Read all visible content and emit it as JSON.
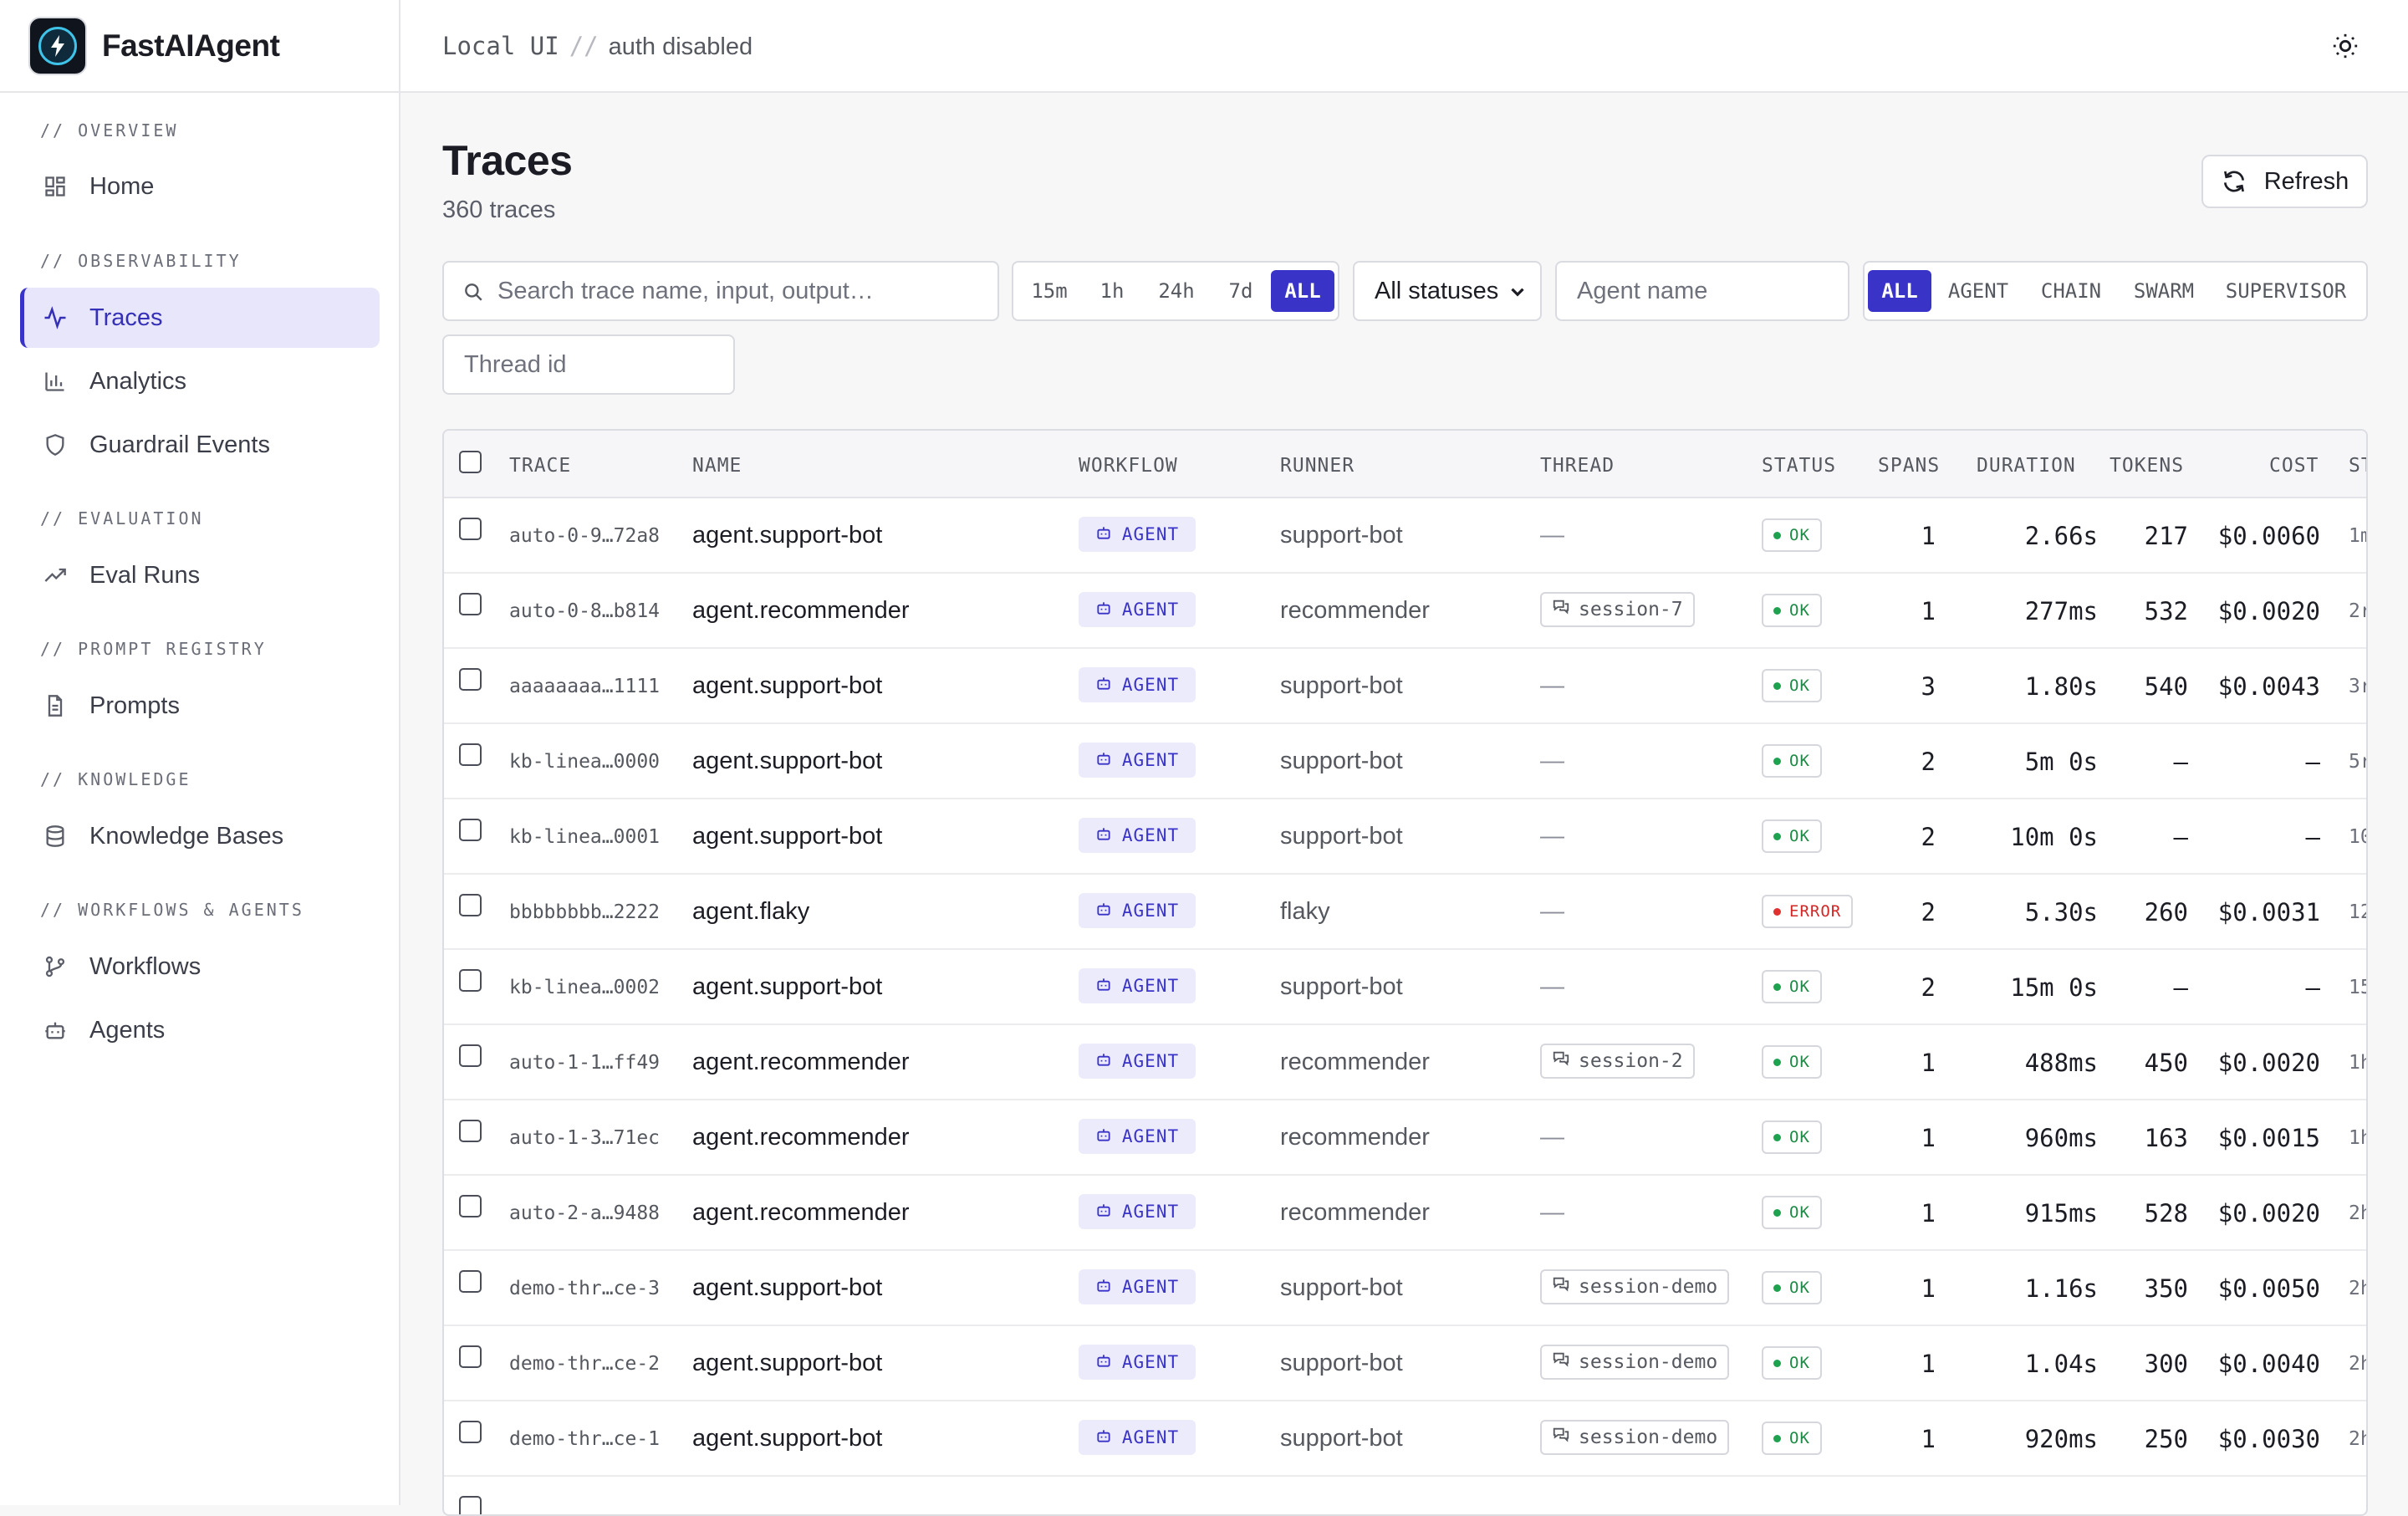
{
  "brand": {
    "name": "FastAIAgent"
  },
  "topbar": {
    "crumb_left": "Local UI",
    "crumb_sep": "//",
    "crumb_right": "auth disabled",
    "theme_icon": "sun-icon"
  },
  "sidebar": {
    "sections": [
      {
        "title": "// OVERVIEW",
        "items": [
          {
            "label": "Home",
            "icon": "grid-icon"
          }
        ]
      },
      {
        "title": "// OBSERVABILITY",
        "items": [
          {
            "label": "Traces",
            "icon": "activity-icon",
            "active": true
          },
          {
            "label": "Analytics",
            "icon": "bar-chart-icon"
          },
          {
            "label": "Guardrail Events",
            "icon": "shield-icon"
          }
        ]
      },
      {
        "title": "// EVALUATION",
        "items": [
          {
            "label": "Eval Runs",
            "icon": "trending-up-icon"
          }
        ]
      },
      {
        "title": "// PROMPT REGISTRY",
        "items": [
          {
            "label": "Prompts",
            "icon": "document-icon"
          }
        ]
      },
      {
        "title": "// KNOWLEDGE",
        "items": [
          {
            "label": "Knowledge Bases",
            "icon": "database-icon"
          }
        ]
      },
      {
        "title": "// WORKFLOWS & AGENTS",
        "items": [
          {
            "label": "Workflows",
            "icon": "git-branch-icon"
          },
          {
            "label": "Agents",
            "icon": "bot-icon"
          }
        ]
      }
    ]
  },
  "page": {
    "title": "Traces",
    "subtitle": "360 traces",
    "refresh_label": "Refresh"
  },
  "filters": {
    "search_placeholder": "Search trace name, input, output…",
    "time_ranges": [
      "15m",
      "1h",
      "24h",
      "7d",
      "ALL"
    ],
    "time_selected": "ALL",
    "status_select": "All statuses",
    "agent_placeholder": "Agent name",
    "kinds": [
      "ALL",
      "AGENT",
      "CHAIN",
      "SWARM",
      "SUPERVISOR"
    ],
    "kind_selected": "ALL",
    "thread_placeholder": "Thread id"
  },
  "table": {
    "columns": [
      "TRACE",
      "NAME",
      "WORKFLOW",
      "RUNNER",
      "THREAD",
      "STATUS",
      "SPANS",
      "DURATION",
      "TOKENS",
      "COST",
      "ST"
    ],
    "rows": [
      {
        "trace": "auto-0-9…72a8",
        "name": "agent.support-bot",
        "workflow": "AGENT",
        "runner": "support-bot",
        "thread": "—",
        "status": "OK",
        "spans": "1",
        "duration": "2.66s",
        "tokens": "217",
        "cost": "$0.0060",
        "started": "1m"
      },
      {
        "trace": "auto-0-8…b814",
        "name": "agent.recommender",
        "workflow": "AGENT",
        "runner": "recommender",
        "thread": "session-7",
        "status": "OK",
        "spans": "1",
        "duration": "277ms",
        "tokens": "532",
        "cost": "$0.0020",
        "started": "2r"
      },
      {
        "trace": "aaaaaaaa…1111",
        "name": "agent.support-bot",
        "workflow": "AGENT",
        "runner": "support-bot",
        "thread": "—",
        "status": "OK",
        "spans": "3",
        "duration": "1.80s",
        "tokens": "540",
        "cost": "$0.0043",
        "started": "3r"
      },
      {
        "trace": "kb-linea…0000",
        "name": "agent.support-bot",
        "workflow": "AGENT",
        "runner": "support-bot",
        "thread": "—",
        "status": "OK",
        "spans": "2",
        "duration": "5m 0s",
        "tokens": "—",
        "cost": "—",
        "started": "5r"
      },
      {
        "trace": "kb-linea…0001",
        "name": "agent.support-bot",
        "workflow": "AGENT",
        "runner": "support-bot",
        "thread": "—",
        "status": "OK",
        "spans": "2",
        "duration": "10m 0s",
        "tokens": "—",
        "cost": "—",
        "started": "10"
      },
      {
        "trace": "bbbbbbbb…2222",
        "name": "agent.flaky",
        "workflow": "AGENT",
        "runner": "flaky",
        "thread": "—",
        "status": "ERROR",
        "spans": "2",
        "duration": "5.30s",
        "tokens": "260",
        "cost": "$0.0031",
        "started": "12"
      },
      {
        "trace": "kb-linea…0002",
        "name": "agent.support-bot",
        "workflow": "AGENT",
        "runner": "support-bot",
        "thread": "—",
        "status": "OK",
        "spans": "2",
        "duration": "15m 0s",
        "tokens": "—",
        "cost": "—",
        "started": "15"
      },
      {
        "trace": "auto-1-1…ff49",
        "name": "agent.recommender",
        "workflow": "AGENT",
        "runner": "recommender",
        "thread": "session-2",
        "status": "OK",
        "spans": "1",
        "duration": "488ms",
        "tokens": "450",
        "cost": "$0.0020",
        "started": "1h"
      },
      {
        "trace": "auto-1-3…71ec",
        "name": "agent.recommender",
        "workflow": "AGENT",
        "runner": "recommender",
        "thread": "—",
        "status": "OK",
        "spans": "1",
        "duration": "960ms",
        "tokens": "163",
        "cost": "$0.0015",
        "started": "1h"
      },
      {
        "trace": "auto-2-a…9488",
        "name": "agent.recommender",
        "workflow": "AGENT",
        "runner": "recommender",
        "thread": "—",
        "status": "OK",
        "spans": "1",
        "duration": "915ms",
        "tokens": "528",
        "cost": "$0.0020",
        "started": "2h"
      },
      {
        "trace": "demo-thr…ce-3",
        "name": "agent.support-bot",
        "workflow": "AGENT",
        "runner": "support-bot",
        "thread": "session-demo",
        "status": "OK",
        "spans": "1",
        "duration": "1.16s",
        "tokens": "350",
        "cost": "$0.0050",
        "started": "2h"
      },
      {
        "trace": "demo-thr…ce-2",
        "name": "agent.support-bot",
        "workflow": "AGENT",
        "runner": "support-bot",
        "thread": "session-demo",
        "status": "OK",
        "spans": "1",
        "duration": "1.04s",
        "tokens": "300",
        "cost": "$0.0040",
        "started": "2h"
      },
      {
        "trace": "demo-thr…ce-1",
        "name": "agent.support-bot",
        "workflow": "AGENT",
        "runner": "support-bot",
        "thread": "session-demo",
        "status": "OK",
        "spans": "1",
        "duration": "920ms",
        "tokens": "250",
        "cost": "$0.0030",
        "started": "2h"
      }
    ]
  },
  "colors": {
    "accent": "#3a33c8",
    "active_bg": "#e8e6fb",
    "ok": "#1f8a45",
    "error": "#d32626"
  }
}
